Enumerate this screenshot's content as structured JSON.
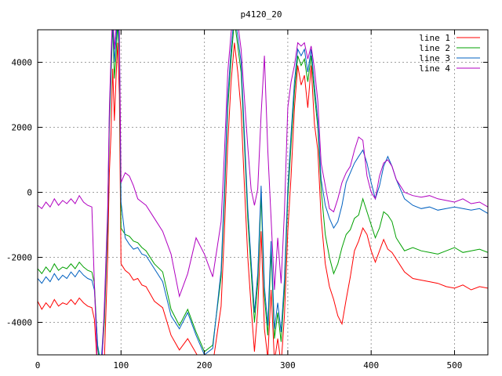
{
  "chart_data": {
    "type": "line",
    "title": "p4120_20",
    "xlabel": "",
    "ylabel": "",
    "xlim": [
      0,
      540
    ],
    "ylim": [
      -5000,
      5000
    ],
    "xticks": [
      0,
      100,
      200,
      300,
      400,
      500
    ],
    "yticks": [
      -4000,
      -2000,
      0,
      2000,
      4000
    ],
    "grid": true,
    "legend_position": "top-right",
    "series": [
      {
        "name": "line 1",
        "color": "#ff0000",
        "x": [
          0,
          5,
          10,
          15,
          20,
          25,
          30,
          35,
          40,
          45,
          50,
          55,
          60,
          65,
          68,
          72,
          76,
          80,
          84,
          86,
          88,
          90,
          92,
          94,
          96,
          98,
          100,
          105,
          110,
          115,
          120,
          125,
          130,
          140,
          150,
          160,
          170,
          180,
          190,
          200,
          210,
          220,
          224,
          228,
          232,
          236,
          240,
          244,
          248,
          252,
          256,
          260,
          264,
          268,
          272,
          276,
          280,
          284,
          288,
          292,
          296,
          300,
          304,
          308,
          312,
          316,
          320,
          324,
          328,
          332,
          336,
          340,
          345,
          350,
          355,
          360,
          365,
          370,
          375,
          380,
          385,
          390,
          395,
          400,
          405,
          410,
          415,
          420,
          425,
          430,
          440,
          450,
          460,
          470,
          480,
          490,
          500,
          510,
          520,
          530,
          540
        ],
        "y": [
          -3350,
          -3600,
          -3400,
          -3550,
          -3300,
          -3500,
          -3400,
          -3450,
          -3300,
          -3450,
          -3250,
          -3400,
          -3500,
          -3550,
          -3900,
          -5500,
          -6000,
          -5200,
          -2000,
          600,
          1800,
          3800,
          2200,
          3500,
          4600,
          3000,
          -2200,
          -2400,
          -2500,
          -2700,
          -2650,
          -2850,
          -2900,
          -3350,
          -3550,
          -4400,
          -4850,
          -4500,
          -4950,
          -5400,
          -5300,
          -3500,
          -1200,
          1500,
          3400,
          4600,
          3700,
          2500,
          200,
          -2000,
          -3500,
          -4900,
          -3600,
          -1200,
          -4200,
          -5100,
          -3000,
          -5200,
          -4500,
          -5300,
          -3800,
          -1200,
          500,
          2600,
          3900,
          3300,
          3600,
          2600,
          3900,
          2100,
          1300,
          -800,
          -2200,
          -2900,
          -3300,
          -3800,
          -4050,
          -3300,
          -2600,
          -1800,
          -1500,
          -1100,
          -1300,
          -1800,
          -2150,
          -1800,
          -1450,
          -1750,
          -1850,
          -2050,
          -2450,
          -2650,
          -2700,
          -2750,
          -2800,
          -2900,
          -2950,
          -2850,
          -3000,
          -2900,
          -2950
        ]
      },
      {
        "name": "line 2",
        "color": "#00a000",
        "x": [
          0,
          5,
          10,
          15,
          20,
          25,
          30,
          35,
          40,
          45,
          50,
          55,
          60,
          65,
          68,
          72,
          76,
          80,
          84,
          86,
          88,
          90,
          92,
          94,
          96,
          98,
          100,
          105,
          110,
          115,
          120,
          125,
          130,
          140,
          150,
          160,
          170,
          180,
          190,
          200,
          210,
          220,
          224,
          228,
          232,
          236,
          240,
          244,
          248,
          252,
          256,
          260,
          264,
          268,
          272,
          276,
          280,
          284,
          288,
          292,
          296,
          300,
          304,
          308,
          312,
          316,
          320,
          324,
          328,
          332,
          336,
          340,
          345,
          350,
          355,
          360,
          365,
          370,
          375,
          380,
          385,
          390,
          395,
          400,
          405,
          410,
          415,
          420,
          425,
          430,
          440,
          450,
          460,
          470,
          480,
          490,
          500,
          510,
          520,
          530,
          540
        ],
        "y": [
          -2350,
          -2500,
          -2300,
          -2450,
          -2200,
          -2400,
          -2300,
          -2350,
          -2200,
          -2350,
          -2150,
          -2300,
          -2400,
          -2450,
          -2800,
          -4800,
          -5500,
          -4000,
          -1000,
          2000,
          3500,
          5200,
          3500,
          4200,
          5200,
          4200,
          -1100,
          -1300,
          -1350,
          -1500,
          -1550,
          -1700,
          -1800,
          -2200,
          -2450,
          -3600,
          -4100,
          -3600,
          -4300,
          -4900,
          -4700,
          -2600,
          -200,
          2600,
          4100,
          5300,
          4500,
          3700,
          1500,
          -800,
          -2400,
          -4000,
          -2800,
          -100,
          -3200,
          -4400,
          -1800,
          -4500,
          -3700,
          -4600,
          -3000,
          -200,
          1500,
          3100,
          4200,
          3900,
          4100,
          3400,
          4200,
          3000,
          2000,
          100,
          -1300,
          -2000,
          -2500,
          -2200,
          -1700,
          -1300,
          -1150,
          -800,
          -700,
          -200,
          -600,
          -1000,
          -1400,
          -1100,
          -600,
          -700,
          -900,
          -1400,
          -1800,
          -1700,
          -1800,
          -1850,
          -1900,
          -1800,
          -1700,
          -1850,
          -1800,
          -1750,
          -1850
        ]
      },
      {
        "name": "line 3",
        "color": "#0060c0",
        "x": [
          0,
          5,
          10,
          15,
          20,
          25,
          30,
          35,
          40,
          45,
          50,
          55,
          60,
          65,
          68,
          72,
          76,
          80,
          84,
          86,
          88,
          90,
          92,
          94,
          96,
          98,
          100,
          105,
          110,
          115,
          120,
          125,
          130,
          140,
          150,
          160,
          170,
          180,
          190,
          200,
          210,
          220,
          224,
          228,
          232,
          236,
          240,
          244,
          248,
          252,
          256,
          260,
          264,
          268,
          272,
          276,
          280,
          284,
          288,
          292,
          296,
          300,
          304,
          308,
          312,
          316,
          320,
          324,
          328,
          332,
          336,
          340,
          345,
          350,
          355,
          360,
          365,
          370,
          375,
          380,
          385,
          390,
          395,
          400,
          405,
          410,
          415,
          420,
          425,
          430,
          440,
          450,
          460,
          470,
          480,
          490,
          500,
          510,
          520,
          530,
          540
        ],
        "y": [
          -2650,
          -2800,
          -2600,
          -2750,
          -2500,
          -2700,
          -2550,
          -2650,
          -2450,
          -2600,
          -2400,
          -2550,
          -2650,
          -2700,
          -3000,
          -4700,
          -5300,
          -3700,
          -700,
          2300,
          3900,
          5400,
          4000,
          4700,
          5500,
          4500,
          -300,
          -1400,
          -1600,
          -1750,
          -1700,
          -1900,
          -1950,
          -2350,
          -2750,
          -3800,
          -4200,
          -3700,
          -4400,
          -5000,
          -4800,
          -2400,
          100,
          2900,
          4400,
          5500,
          4800,
          4000,
          1800,
          -500,
          -2100,
          -3700,
          -2500,
          200,
          -2900,
          -4100,
          -1500,
          -4200,
          -3400,
          -4300,
          -2700,
          100,
          1800,
          3400,
          4400,
          4200,
          4400,
          3700,
          4400,
          3300,
          2200,
          400,
          -400,
          -800,
          -1100,
          -900,
          -400,
          300,
          600,
          900,
          1100,
          1300,
          900,
          300,
          -200,
          200,
          800,
          1100,
          800,
          400,
          -200,
          -400,
          -500,
          -450,
          -550,
          -500,
          -450,
          -500,
          -550,
          -500,
          -650
        ]
      },
      {
        "name": "line 4",
        "color": "#b000c0",
        "x": [
          0,
          5,
          10,
          15,
          20,
          25,
          30,
          35,
          40,
          45,
          50,
          55,
          60,
          65,
          68,
          72,
          76,
          80,
          84,
          86,
          88,
          90,
          92,
          94,
          96,
          98,
          100,
          105,
          110,
          115,
          120,
          125,
          130,
          140,
          150,
          160,
          170,
          180,
          190,
          200,
          210,
          220,
          224,
          228,
          232,
          236,
          240,
          244,
          248,
          252,
          256,
          260,
          264,
          268,
          272,
          276,
          280,
          284,
          288,
          292,
          296,
          300,
          304,
          308,
          312,
          316,
          320,
          324,
          328,
          332,
          336,
          340,
          345,
          350,
          355,
          360,
          365,
          370,
          375,
          380,
          385,
          390,
          395,
          400,
          405,
          410,
          415,
          420,
          425,
          430,
          440,
          450,
          460,
          470,
          480,
          490,
          500,
          510,
          520,
          530,
          540
        ],
        "y": [
          -400,
          -500,
          -300,
          -450,
          -200,
          -400,
          -250,
          -350,
          -200,
          -350,
          -100,
          -300,
          -400,
          -450,
          -2800,
          -5500,
          -6000,
          -3500,
          -500,
          2500,
          4200,
          5600,
          4400,
          5000,
          5600,
          4900,
          300,
          600,
          500,
          200,
          -200,
          -300,
          -400,
          -800,
          -1200,
          -1900,
          -3200,
          -2500,
          -1400,
          -1900,
          -2600,
          -900,
          1200,
          3700,
          4900,
          5600,
          5200,
          4400,
          2900,
          1400,
          100,
          -400,
          100,
          2400,
          4200,
          1300,
          -800,
          -3000,
          -1400,
          -2800,
          -600,
          2600,
          3400,
          3900,
          4600,
          4500,
          4600,
          4100,
          4500,
          3800,
          2800,
          900,
          200,
          -500,
          -600,
          -200,
          300,
          600,
          800,
          1300,
          1700,
          1600,
          500,
          0,
          -200,
          500,
          900,
          1000,
          800,
          400,
          0,
          -100,
          -150,
          -100,
          -200,
          -250,
          -300,
          -200,
          -350,
          -300,
          -450
        ]
      }
    ]
  }
}
